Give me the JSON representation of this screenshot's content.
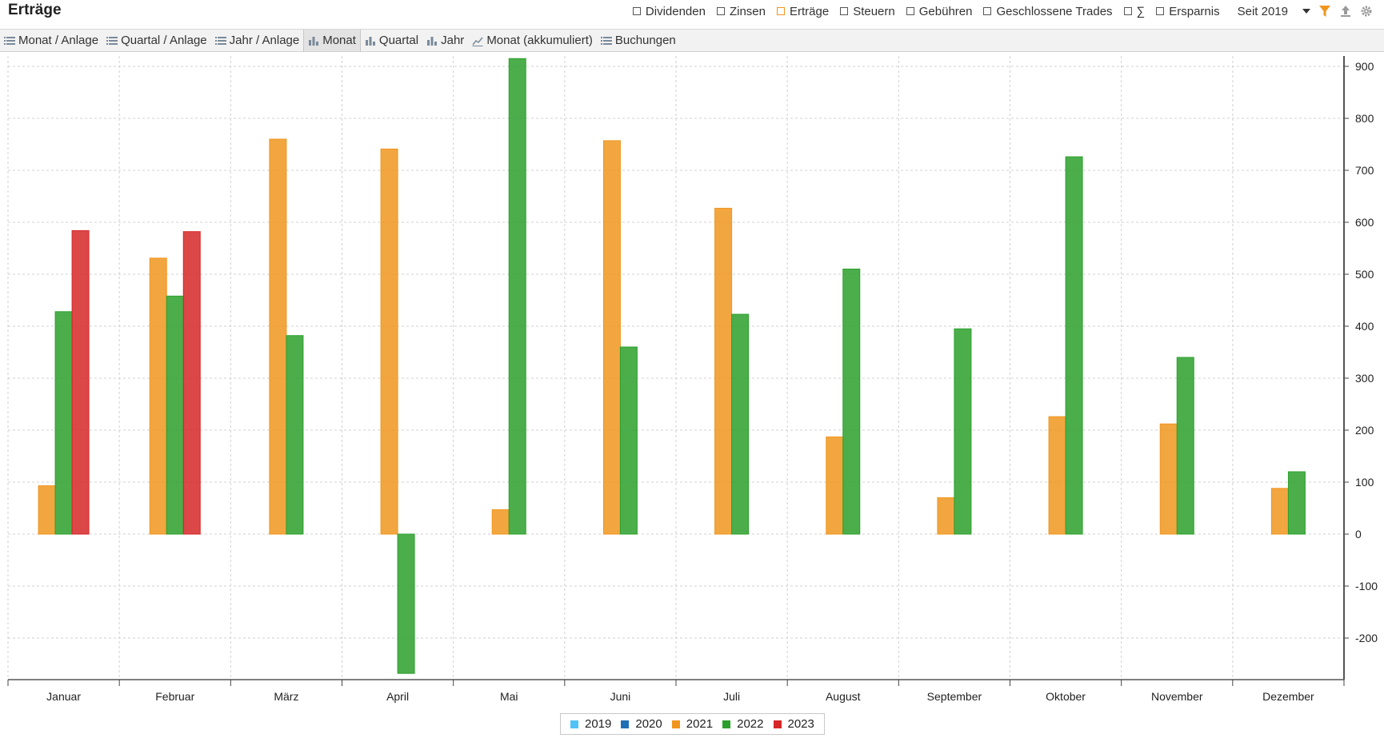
{
  "header": {
    "title": "Erträge",
    "filters": [
      {
        "label": "Dividenden",
        "checked": false
      },
      {
        "label": "Zinsen",
        "checked": false
      },
      {
        "label": "Erträge",
        "checked": true
      },
      {
        "label": "Steuern",
        "checked": false
      },
      {
        "label": "Gebühren",
        "checked": false
      },
      {
        "label": "Geschlossene Trades",
        "checked": false
      },
      {
        "label": "∑",
        "checked": false
      },
      {
        "label": "Ersparnis",
        "checked": false
      }
    ],
    "period": "Seit 2019",
    "icons": [
      "filter-icon",
      "export-icon",
      "settings-icon"
    ]
  },
  "tabs": [
    {
      "label": "Monat / Anlage",
      "icon": "list-icon",
      "active": false
    },
    {
      "label": "Quartal / Anlage",
      "icon": "list-icon",
      "active": false
    },
    {
      "label": "Jahr / Anlage",
      "icon": "list-icon",
      "active": false
    },
    {
      "label": "Monat",
      "icon": "bar-chart-icon",
      "active": true
    },
    {
      "label": "Quartal",
      "icon": "bar-chart-icon",
      "active": false
    },
    {
      "label": "Jahr",
      "icon": "bar-chart-icon",
      "active": false
    },
    {
      "label": "Monat (akkumuliert)",
      "icon": "line-chart-icon",
      "active": false
    },
    {
      "label": "Buchungen",
      "icon": "list-icon",
      "active": false
    }
  ],
  "chart_data": {
    "type": "bar",
    "categories": [
      "Januar",
      "Februar",
      "März",
      "April",
      "Mai",
      "Juni",
      "Juli",
      "August",
      "September",
      "Oktober",
      "November",
      "Dezember"
    ],
    "series": [
      {
        "name": "2019",
        "color": "#4fc3f7",
        "values": [
          0,
          0,
          0,
          0,
          0,
          0,
          0,
          0,
          0,
          0,
          0,
          0
        ]
      },
      {
        "name": "2020",
        "color": "#1f6fb4",
        "values": [
          0,
          0,
          0,
          0,
          0,
          0,
          0,
          0,
          0,
          0,
          0,
          0
        ]
      },
      {
        "name": "2021",
        "color": "#f0961e",
        "values": [
          93,
          531,
          760,
          741,
          47,
          757,
          627,
          187,
          70,
          226,
          212,
          88
        ]
      },
      {
        "name": "2022",
        "color": "#2ca02c",
        "values": [
          428,
          458,
          382,
          -268,
          915,
          360,
          423,
          510,
          395,
          726,
          340,
          120
        ]
      },
      {
        "name": "2023",
        "color": "#d62728",
        "values": [
          584,
          582,
          null,
          null,
          null,
          null,
          null,
          null,
          null,
          null,
          null,
          null
        ]
      }
    ],
    "visible_series": [
      "2021",
      "2022",
      "2023"
    ],
    "y_ticks": [
      -200,
      -100,
      0,
      100,
      200,
      300,
      400,
      500,
      600,
      700,
      800,
      900
    ],
    "ylim": [
      -280,
      920
    ],
    "y_axis_side": "right",
    "grid": true,
    "legend_position": "bottom-center"
  }
}
